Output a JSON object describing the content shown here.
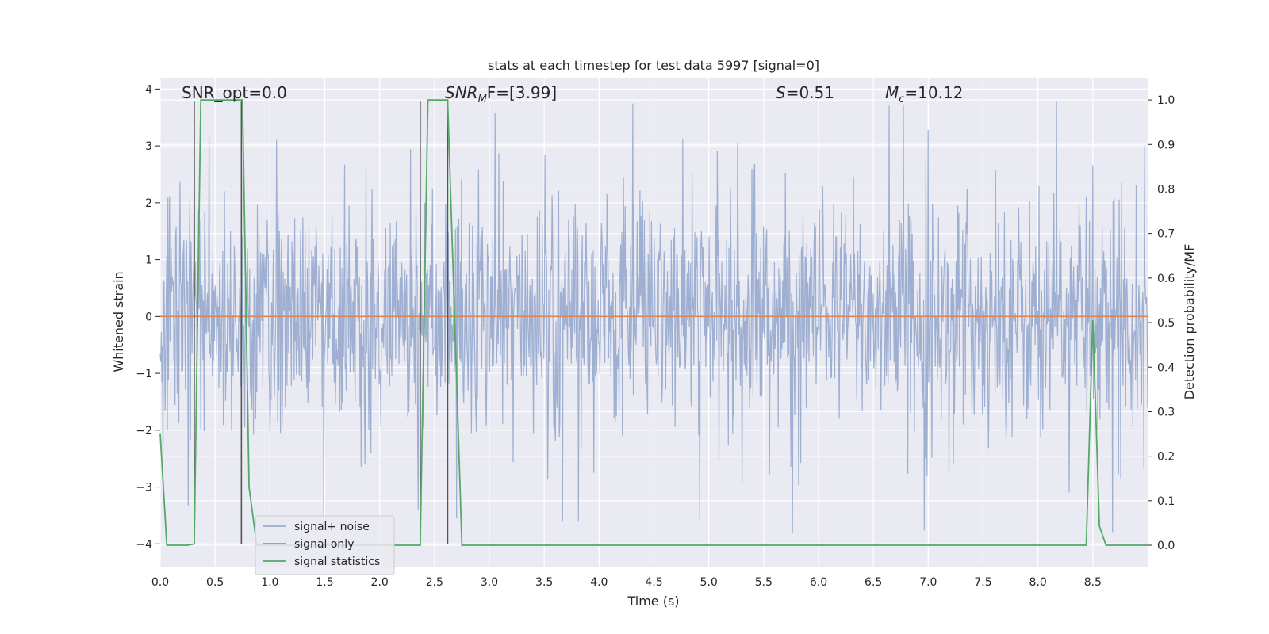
{
  "chart_data": {
    "type": "line",
    "title": "stats at each timestep for test data 5997 [signal=0]",
    "xlabel": "Time (s)",
    "ylabel": "Whitened strain",
    "ylabel_right": "Detection probability/MF",
    "xlim": [
      0.0,
      9.0
    ],
    "ylim": [
      -4.4,
      4.2
    ],
    "ylim_right": [
      -0.048,
      1.05
    ],
    "x_ticks": [
      "0.0",
      "0.5",
      "1.0",
      "1.5",
      "2.0",
      "2.5",
      "3.0",
      "3.5",
      "4.0",
      "4.5",
      "5.0",
      "5.5",
      "6.0",
      "6.5",
      "7.0",
      "7.5",
      "8.0",
      "8.5"
    ],
    "y_ticks": [
      "4",
      "3",
      "2",
      "1",
      "0",
      "−1",
      "−2",
      "−3",
      "−4"
    ],
    "y_ticks_right": [
      "1.0",
      "0.9",
      "0.8",
      "0.7",
      "0.6",
      "0.5",
      "0.4",
      "0.3",
      "0.2",
      "0.1",
      "0.0"
    ],
    "grid": true,
    "legend_position": "lower-left",
    "annotations": {
      "snr_opt": "SNR_opt=0.0",
      "snr_mf_sym": "SNR",
      "snr_mf_sub": "M",
      "snr_mf_rest": "F=[3.99]",
      "s_sym": "S",
      "s_rest": "=0.51",
      "mc_sym": "M",
      "mc_sub": "c",
      "mc_rest": "=10.12"
    },
    "series": [
      {
        "name": "signal+ noise",
        "color": "#9aacd0",
        "description": "whitened noise, roughly gaussian, amplitude about ±1.4 with spikes up to ±3.8",
        "typical_range": [
          -1.4,
          1.4
        ],
        "spike_range": [
          -3.8,
          3.8
        ],
        "samples": 1800
      },
      {
        "name": "signal only",
        "color": "#dd8452",
        "x": [
          0.0,
          9.0
        ],
        "y": [
          0.0,
          0.0
        ]
      },
      {
        "name": "signal statistics",
        "color": "#55a868",
        "x": [
          0.0,
          0.06,
          0.13,
          0.25,
          0.31,
          0.37,
          0.47,
          0.62,
          0.75,
          0.81,
          0.88,
          2.25,
          2.37,
          2.44,
          2.55,
          2.62,
          2.75,
          8.44,
          8.5,
          8.56,
          8.62,
          8.75,
          9.0
        ],
        "y": [
          0.25,
          0.0,
          0.0,
          0.0,
          0.003,
          1.0,
          1.0,
          1.0,
          1.0,
          0.13,
          0.0,
          0.0,
          0.0,
          1.0,
          1.0,
          1.0,
          0.0,
          0.0,
          0.505,
          0.043,
          0.0,
          0.0,
          0.0
        ]
      }
    ],
    "vlines": {
      "color": "#555555",
      "x": [
        0.31,
        0.74,
        2.37,
        2.62
      ],
      "y_top": 3.78,
      "y_bottom": -4.0
    }
  }
}
